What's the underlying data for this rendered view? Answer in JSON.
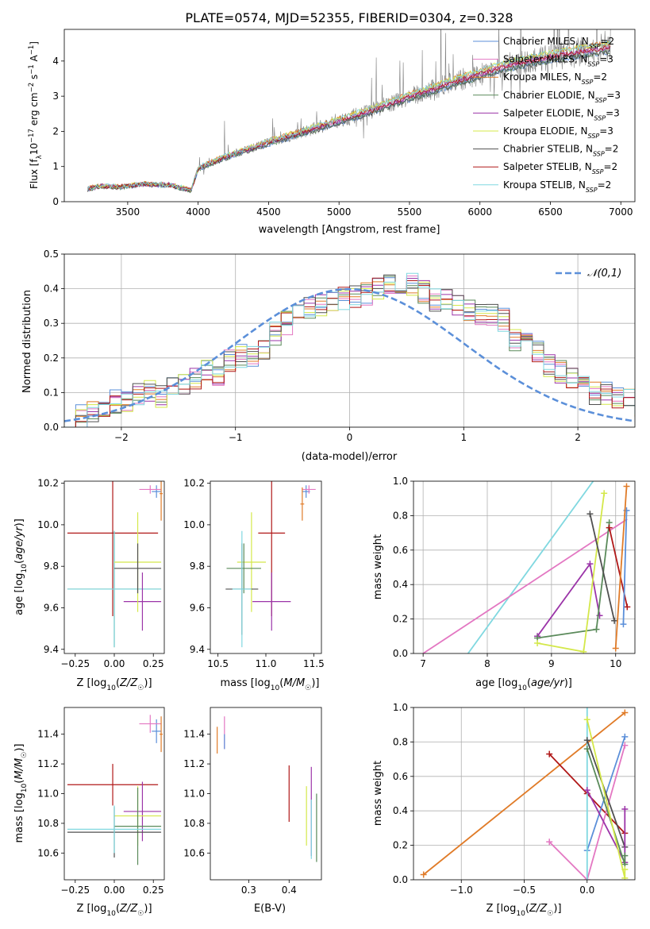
{
  "figure_title": "PLATE=0574, MJD=52355, FIBERID=0304, z=0.328",
  "colors": {
    "chabrier_miles": "#5b8fd9",
    "salpeter_miles": "#e377c2",
    "kroupa_miles": "#e07b28",
    "chabrier_elodie": "#5a8a5a",
    "salpeter_elodie": "#9b34a8",
    "kroupa_elodie": "#d4e84a",
    "chabrier_stelib": "#505050",
    "salpeter_stelib": "#b01818",
    "kroupa_stelib": "#80d8e0",
    "data": "#808080"
  },
  "chart_data": [
    {
      "id": "spectrum",
      "type": "line",
      "xlabel": "wavelength [Angstrom, rest frame]",
      "ylabel": "Flux [f_λ 10^-17 erg cm^-2 s^-1 A^-1]",
      "xlim": [
        3050,
        7100
      ],
      "ylim": [
        0,
        4.9
      ],
      "xticks": [
        3500,
        4000,
        4500,
        5000,
        5500,
        6000,
        6500,
        7000
      ],
      "yticks": [
        0,
        1,
        2,
        3,
        4
      ],
      "legend_position": "right",
      "continuum_knots": {
        "x": [
          3210,
          3300,
          3450,
          3600,
          3800,
          3950,
          4000,
          4200,
          4500,
          4800,
          5200,
          5500,
          5800,
          6200,
          6500,
          6900
        ],
        "y": [
          0.36,
          0.44,
          0.42,
          0.5,
          0.48,
          0.32,
          0.95,
          1.28,
          1.68,
          2.05,
          2.55,
          2.98,
          3.38,
          3.88,
          4.12,
          4.38
        ]
      },
      "series": [
        {
          "name": "Chabrier MILES, N_SSP=2",
          "color_key": "chabrier_miles"
        },
        {
          "name": "Salpeter MILES, N_SSP=3",
          "color_key": "salpeter_miles"
        },
        {
          "name": "Kroupa MILES, N_SSP=2",
          "color_key": "kroupa_miles"
        },
        {
          "name": "Chabrier ELODIE, N_SSP=3",
          "color_key": "chabrier_elodie"
        },
        {
          "name": "Salpeter ELODIE, N_SSP=3",
          "color_key": "salpeter_elodie"
        },
        {
          "name": "Kroupa ELODIE, N_SSP=3",
          "color_key": "kroupa_elodie"
        },
        {
          "name": "Chabrier STELIB, N_SSP=2",
          "color_key": "chabrier_stelib"
        },
        {
          "name": "Salpeter STELIB, N_SSP=2",
          "color_key": "salpeter_stelib"
        },
        {
          "name": "Kroupa STELIB, N_SSP=2",
          "color_key": "kroupa_stelib"
        }
      ]
    },
    {
      "id": "residuals",
      "type": "histogram",
      "xlabel": "(data-model)/error",
      "ylabel": "Normed distribution",
      "xlim": [
        -2.5,
        2.5
      ],
      "ylim": [
        0,
        0.5
      ],
      "xticks": [
        -2,
        -1,
        0,
        1,
        2
      ],
      "yticks": [
        0.0,
        0.1,
        0.2,
        0.3,
        0.4,
        0.5
      ],
      "grid": true,
      "legend_position": "top-right",
      "reference_curve": {
        "name": "𝒩(0,1)",
        "mean": 0,
        "sigma": 1
      },
      "bin_width": 0.1,
      "bin_start": -2.5,
      "base_density": [
        0.03,
        0.031,
        0.048,
        0.065,
        0.073,
        0.079,
        0.095,
        0.1,
        0.09,
        0.11,
        0.13,
        0.142,
        0.16,
        0.155,
        0.19,
        0.205,
        0.21,
        0.222,
        0.27,
        0.3,
        0.32,
        0.34,
        0.35,
        0.36,
        0.37,
        0.38,
        0.385,
        0.4,
        0.42,
        0.39,
        0.41,
        0.39,
        0.365,
        0.365,
        0.355,
        0.34,
        0.33,
        0.325,
        0.31,
        0.25,
        0.24,
        0.215,
        0.18,
        0.16,
        0.14,
        0.13,
        0.1,
        0.1,
        0.09,
        0.08,
        0.055,
        0.05,
        0.04,
        0.035,
        0.04
      ]
    },
    {
      "id": "age-vs-Z",
      "type": "errorbar",
      "xlabel": "Z [log10(Z/Z☉)]",
      "ylabel": "age  [log10(age/yr)]",
      "xlim": [
        -0.32,
        0.32
      ],
      "ylim": [
        9.38,
        10.21
      ],
      "xticks": [
        -0.25,
        0.0,
        0.25
      ],
      "xtick_labels": [
        "−0.25",
        "0.00",
        "0.25"
      ],
      "yticks": [
        9.4,
        9.6,
        9.8,
        10.0,
        10.2
      ],
      "points": [
        {
          "color_key": "salpeter_stelib",
          "x": -0.01,
          "xerr": 0.29,
          "y": 9.96,
          "yerr": 0.4
        },
        {
          "color_key": "chabrier_elodie",
          "x": 0.0,
          "xerr": 0.3,
          "y": 9.69,
          "yerr": 0.28
        },
        {
          "color_key": "kroupa_stelib",
          "x": 0.0,
          "xerr": 0.3,
          "y": 9.69,
          "yerr": 0.28
        },
        {
          "color_key": "salpeter_elodie",
          "x": 0.18,
          "xerr": 0.12,
          "y": 9.63,
          "yerr": 0.14
        },
        {
          "color_key": "kroupa_elodie",
          "x": 0.15,
          "xerr": 0.15,
          "y": 9.82,
          "yerr": 0.24
        },
        {
          "color_key": "chabrier_stelib",
          "x": 0.15,
          "xerr": 0.15,
          "y": 9.79,
          "yerr": 0.12
        },
        {
          "color_key": "chabrier_miles",
          "x": 0.27,
          "xerr": 0.03,
          "y": 10.16,
          "yerr": 0.03
        },
        {
          "color_key": "salpeter_miles",
          "x": 0.23,
          "xerr": 0.07,
          "y": 10.17,
          "yerr": 0.02
        },
        {
          "color_key": "kroupa_miles",
          "x": 0.3,
          "xerr": 0.01,
          "y": 10.15,
          "yerr": 0.13
        }
      ]
    },
    {
      "id": "age-vs-mass",
      "type": "errorbar",
      "xlabel": "mass [log10(M/M☉)]",
      "xlim": [
        10.42,
        11.58
      ],
      "ylim": [
        9.38,
        10.21
      ],
      "xticks": [
        10.5,
        11.0,
        11.5
      ],
      "yticks": [
        9.4,
        9.6,
        9.8,
        10.0,
        10.2
      ],
      "points": [
        {
          "color_key": "salpeter_stelib",
          "x": 11.06,
          "xerr": 0.14,
          "y": 9.96,
          "yerr": 0.4
        },
        {
          "color_key": "salpeter_elodie",
          "x": 11.06,
          "xerr": 0.2,
          "y": 9.63,
          "yerr": 0.14
        },
        {
          "color_key": "kroupa_elodie",
          "x": 10.85,
          "xerr": 0.15,
          "y": 9.82,
          "yerr": 0.24
        },
        {
          "color_key": "chabrier_elodie",
          "x": 10.77,
          "xerr": 0.18,
          "y": 9.79,
          "yerr": 0.12
        },
        {
          "color_key": "chabrier_stelib",
          "x": 10.75,
          "xerr": 0.17,
          "y": 9.69,
          "yerr": 0.22
        },
        {
          "color_key": "kroupa_stelib",
          "x": 10.75,
          "xerr": 0.1,
          "y": 9.69,
          "yerr": 0.28
        },
        {
          "color_key": "chabrier_miles",
          "x": 11.42,
          "xerr": 0.04,
          "y": 10.16,
          "yerr": 0.03
        },
        {
          "color_key": "salpeter_miles",
          "x": 11.45,
          "xerr": 0.07,
          "y": 10.17,
          "yerr": 0.02
        },
        {
          "color_key": "kroupa_miles",
          "x": 11.38,
          "xerr": 0.02,
          "y": 10.1,
          "yerr": 0.08
        }
      ]
    },
    {
      "id": "weight-vs-age",
      "type": "line",
      "xlabel": "age  [log10(age/yr)]",
      "ylabel": "mass weight",
      "xlim": [
        6.85,
        10.3
      ],
      "ylim": [
        0,
        1
      ],
      "xticks": [
        7,
        8,
        9,
        10
      ],
      "yticks": [
        0.0,
        0.2,
        0.4,
        0.6,
        0.8,
        1.0
      ],
      "grid": true,
      "series": [
        {
          "color_key": "kroupa_stelib",
          "x": [
            7.7,
            9.65
          ],
          "y": [
            0.0,
            1.0
          ],
          "markers": false
        },
        {
          "color_key": "salpeter_miles",
          "x": [
            7.0,
            10.18
          ],
          "y": [
            0.0,
            0.78
          ],
          "markers": false
        },
        {
          "color_key": "salpeter_elodie",
          "x": [
            8.78,
            9.6,
            9.75
          ],
          "y": [
            0.1,
            0.52,
            0.22
          ],
          "markers": true
        },
        {
          "color_key": "chabrier_elodie",
          "x": [
            8.78,
            9.7,
            9.9
          ],
          "y": [
            0.09,
            0.14,
            0.76
          ],
          "markers": true
        },
        {
          "color_key": "kroupa_elodie",
          "x": [
            8.78,
            9.5,
            9.82
          ],
          "y": [
            0.06,
            0.01,
            0.93
          ],
          "markers": true
        },
        {
          "color_key": "chabrier_stelib",
          "x": [
            9.6,
            9.98
          ],
          "y": [
            0.81,
            0.19
          ],
          "markers": true
        },
        {
          "color_key": "salpeter_stelib",
          "x": [
            9.9,
            10.18
          ],
          "y": [
            0.73,
            0.27
          ],
          "markers": true
        },
        {
          "color_key": "chabrier_miles",
          "x": [
            10.12,
            10.17
          ],
          "y": [
            0.17,
            0.83
          ],
          "markers": true
        },
        {
          "color_key": "kroupa_miles",
          "x": [
            10.0,
            10.17
          ],
          "y": [
            0.03,
            0.97
          ],
          "markers": true
        }
      ]
    },
    {
      "id": "mass-vs-Z",
      "type": "errorbar",
      "xlabel": "Z [log10(Z/Z☉)]",
      "ylabel": "mass [log10(M/M☉)]",
      "xlim": [
        -0.32,
        0.32
      ],
      "ylim": [
        10.42,
        11.58
      ],
      "xticks": [
        -0.25,
        0.0,
        0.25
      ],
      "xtick_labels": [
        "−0.25",
        "0.00",
        "0.25"
      ],
      "yticks": [
        10.6,
        10.8,
        11.0,
        11.2,
        11.4
      ],
      "points": [
        {
          "color_key": "salpeter_stelib",
          "x": -0.01,
          "xerr": 0.29,
          "y": 11.06,
          "yerr": 0.14
        },
        {
          "color_key": "salpeter_elodie",
          "x": 0.18,
          "xerr": 0.12,
          "y": 10.88,
          "yerr": 0.2
        },
        {
          "color_key": "kroupa_elodie",
          "x": 0.15,
          "xerr": 0.15,
          "y": 10.85,
          "yerr": 0.2
        },
        {
          "color_key": "chabrier_elodie",
          "x": 0.15,
          "xerr": 0.15,
          "y": 10.78,
          "yerr": 0.26
        },
        {
          "color_key": "chabrier_stelib",
          "x": 0.0,
          "xerr": 0.3,
          "y": 10.74,
          "yerr": 0.17
        },
        {
          "color_key": "kroupa_stelib",
          "x": 0.0,
          "xerr": 0.3,
          "y": 10.76,
          "yerr": 0.16
        },
        {
          "color_key": "chabrier_miles",
          "x": 0.27,
          "xerr": 0.03,
          "y": 11.42,
          "yerr": 0.08
        },
        {
          "color_key": "salpeter_miles",
          "x": 0.23,
          "xerr": 0.07,
          "y": 11.47,
          "yerr": 0.06
        },
        {
          "color_key": "kroupa_miles",
          "x": 0.3,
          "xerr": 0.01,
          "y": 11.4,
          "yerr": 0.12
        }
      ]
    },
    {
      "id": "mass-vs-EBV",
      "type": "errorbar",
      "xlabel": "E(B-V)",
      "xlim": [
        0.205,
        0.48
      ],
      "ylim": [
        10.42,
        11.58
      ],
      "xticks": [
        0.3,
        0.4
      ],
      "yticks": [
        10.6,
        10.8,
        11.0,
        11.2,
        11.4
      ],
      "points": [
        {
          "color_key": "kroupa_miles",
          "x": 0.222,
          "y": 11.36,
          "yerr": 0.09
        },
        {
          "color_key": "salpeter_miles",
          "x": 0.24,
          "y": 11.41,
          "yerr": 0.11
        },
        {
          "color_key": "chabrier_miles",
          "x": 0.24,
          "y": 11.35,
          "yerr": 0.05
        },
        {
          "color_key": "salpeter_stelib",
          "x": 0.4,
          "y": 11.0,
          "yerr": 0.19
        },
        {
          "color_key": "kroupa_elodie",
          "x": 0.443,
          "y": 10.85,
          "yerr": 0.2
        },
        {
          "color_key": "salpeter_elodie",
          "x": 0.455,
          "y": 10.88,
          "yerr": 0.3
        },
        {
          "color_key": "kroupa_stelib",
          "x": 0.455,
          "y": 10.76,
          "yerr": 0.2
        },
        {
          "color_key": "chabrier_elodie",
          "x": 0.468,
          "y": 10.77,
          "yerr": 0.23
        }
      ]
    },
    {
      "id": "weight-vs-Z",
      "type": "line",
      "xlabel": "Z [log10(Z/Z☉)]",
      "ylabel": "mass weight",
      "xlim": [
        -1.38,
        0.38
      ],
      "ylim": [
        0,
        1
      ],
      "xticks": [
        -1.0,
        -0.5,
        0.0
      ],
      "xtick_labels": [
        "−1.0",
        "−0.5",
        "0.0"
      ],
      "yticks": [
        0.0,
        0.2,
        0.4,
        0.6,
        0.8,
        1.0
      ],
      "grid": true,
      "series": [
        {
          "color_key": "kroupa_miles",
          "x": [
            -1.3,
            0.3
          ],
          "y": [
            0.03,
            0.97
          ],
          "markers": true
        },
        {
          "color_key": "salpeter_stelib",
          "x": [
            -0.3,
            0.0,
            0.3
          ],
          "y": [
            0.73,
            0.5,
            0.27
          ],
          "markers": true
        },
        {
          "color_key": "salpeter_miles",
          "x": [
            -0.3,
            0.0,
            0.3
          ],
          "y": [
            0.22,
            0.0,
            0.78
          ],
          "markers": true
        },
        {
          "color_key": "chabrier_miles",
          "x": [
            0.0,
            0.3
          ],
          "y": [
            0.17,
            0.83
          ],
          "markers": true
        },
        {
          "color_key": "kroupa_stelib",
          "x": [
            0.0,
            0.0
          ],
          "y": [
            0.0,
            1.0
          ],
          "markers": false
        },
        {
          "color_key": "chabrier_stelib",
          "x": [
            0.0,
            0.3
          ],
          "y": [
            0.81,
            0.19
          ],
          "markers": true
        },
        {
          "color_key": "salpeter_elodie",
          "x": [
            0.0,
            0.3,
            0.3
          ],
          "y": [
            0.52,
            0.1,
            0.41
          ],
          "markers": true
        },
        {
          "color_key": "chabrier_elodie",
          "x": [
            0.0,
            0.3,
            0.3
          ],
          "y": [
            0.76,
            0.09,
            0.14
          ],
          "markers": true
        },
        {
          "color_key": "kroupa_elodie",
          "x": [
            0.0,
            0.3,
            0.3
          ],
          "y": [
            0.93,
            0.01,
            0.06
          ],
          "markers": true
        }
      ]
    }
  ]
}
